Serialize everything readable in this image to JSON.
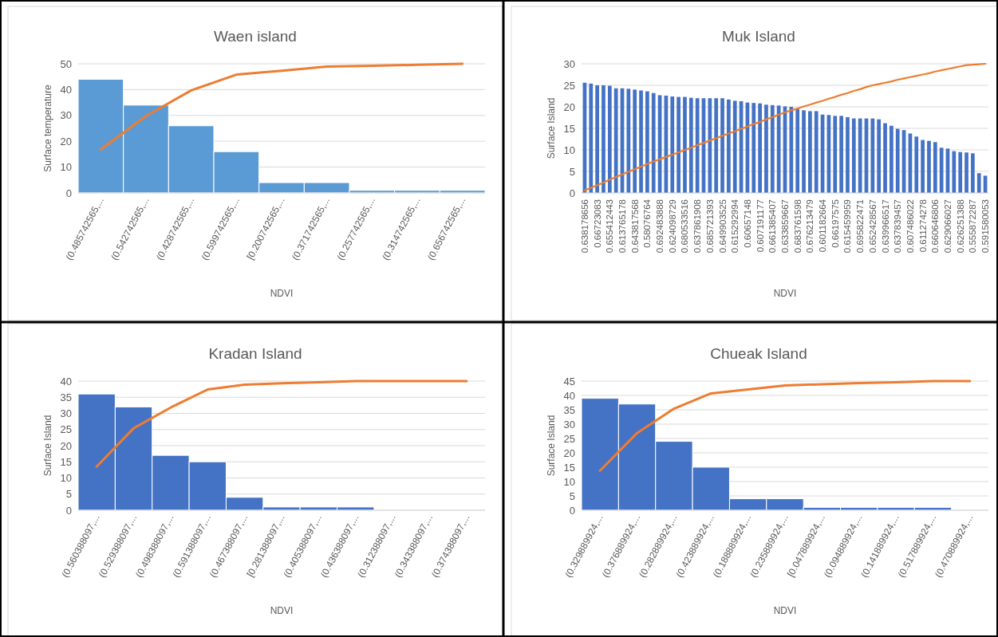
{
  "chart_data": [
    {
      "type": "bar",
      "title": "Waen island",
      "xlabel": "NDVI",
      "ylabel": "Surface temperature",
      "categories": [
        "(0.485742565,...",
        "(0.542742565,...",
        "(0.428742565,...",
        "(0.599742565,...",
        "[0.200742565,...",
        "(0.371742565,...",
        "(0.257742565,...",
        "(0.314742565,...",
        "(0.656742565,..."
      ],
      "series": [
        {
          "color": "#5b9bd5",
          "values": [
            44,
            34,
            26,
            16,
            4,
            4,
            1,
            1,
            1
          ]
        },
        {
          "type": "line",
          "color": "#ed7d31",
          "values": [
            16.8,
            29.8,
            39.7,
            45.8,
            47.3,
            48.9,
            49.2,
            49.6,
            50
          ]
        }
      ],
      "ylim": [
        0,
        50
      ],
      "yticks": [
        0,
        10,
        20,
        30,
        40,
        50
      ],
      "grid": "y",
      "marker": "none",
      "line_style": "solid"
    },
    {
      "type": "bar",
      "title": "Muk Island",
      "xlabel": "NDVI",
      "ylabel": "Surface Island",
      "categories": [
        "0.638178656",
        null,
        "0.66723083",
        null,
        "0.655412443",
        null,
        "0.613765178",
        null,
        "0.643817568",
        null,
        "0.58076764",
        null,
        "0.692483888",
        null,
        "0.624098729",
        null,
        "0.680533516",
        null,
        "0.637861908",
        null,
        "0.685721393",
        null,
        "0.649903525",
        null,
        "0.615292994",
        null,
        "0.60657148",
        null,
        "0.607191177",
        null,
        "0.661385407",
        null,
        "0.633859667",
        null,
        "0.683761598",
        null,
        "0.676213479",
        null,
        "0.601182664",
        null,
        "0.66197575",
        null,
        "0.615459959",
        null,
        "0.695822471",
        null,
        "0.652428567",
        null,
        "0.639966517",
        null,
        "0.637839457",
        null,
        "0.607486022",
        null,
        "0.611274278",
        null,
        "0.660646806",
        null,
        "0.629066027",
        null,
        "0.626251388",
        null,
        "0.555872287",
        null,
        "0.591580053"
      ],
      "series": [
        {
          "color": "#4472c4",
          "values": [
            25.6,
            25.4,
            25.0,
            25.0,
            24.9,
            24.3,
            24.3,
            24.2,
            24.0,
            23.8,
            23.6,
            23.2,
            22.7,
            22.6,
            22.4,
            22.3,
            22.3,
            22.1,
            22.0,
            22.0,
            22.0,
            22.0,
            22.0,
            21.7,
            21.4,
            21.3,
            21.0,
            20.9,
            20.8,
            20.5,
            20.4,
            20.3,
            20.1,
            20.0,
            19.5,
            19.2,
            19.0,
            19.0,
            18.2,
            18.1,
            17.9,
            17.9,
            17.6,
            17.3,
            17.3,
            17.3,
            17.3,
            17.1,
            16.2,
            15.6,
            14.9,
            14.6,
            13.8,
            13.1,
            12.3,
            12.1,
            11.8,
            10.5,
            10.3,
            9.7,
            9.5,
            9.4,
            9.2,
            4.6,
            4.0
          ]
        },
        {
          "type": "line",
          "color": "#ed7d31",
          "values": [
            0.6,
            1.2,
            1.8,
            2.4,
            3.1,
            3.7,
            4.3,
            4.9,
            5.5,
            6.1,
            6.7,
            7.3,
            7.8,
            8.4,
            8.9,
            9.4,
            10.0,
            10.5,
            11.1,
            11.6,
            12.2,
            12.7,
            13.3,
            13.8,
            14.3,
            14.9,
            15.4,
            16.0,
            16.5,
            17.1,
            17.6,
            18.2,
            18.7,
            19.2,
            19.6,
            20.1,
            20.5,
            21.0,
            21.4,
            21.9,
            22.3,
            22.8,
            23.2,
            23.7,
            24.1,
            24.6,
            25.0,
            25.3,
            25.6,
            25.9,
            26.3,
            26.6,
            26.9,
            27.2,
            27.5,
            27.8,
            28.2,
            28.5,
            28.8,
            29.1,
            29.4,
            29.7,
            29.8,
            29.9,
            30.0
          ]
        }
      ],
      "ylim": [
        0,
        30
      ],
      "yticks": [
        0,
        5,
        10,
        15,
        20,
        25,
        30
      ],
      "grid": "y",
      "marker": "none",
      "line_style": "solid"
    },
    {
      "type": "bar",
      "title": "Kradan Island",
      "xlabel": "NDVI",
      "ylabel": "Surface Island",
      "categories": [
        "(0.560388097,...",
        "(0.529388097,...",
        "(0.498388097,...",
        "(0.591388097,...",
        "(0.467388097,...",
        "[0.281388097,...",
        "(0.405388097,...",
        "(0.436388097,...",
        "(0.312388097,...",
        "(0.343388097,...",
        "(0.374388097,..."
      ],
      "series": [
        {
          "color": "#4472c4",
          "values": [
            36,
            32,
            17,
            15,
            4,
            1,
            1,
            1,
            0,
            0,
            0
          ]
        },
        {
          "type": "line",
          "color": "#ed7d31",
          "values": [
            13.5,
            25.4,
            31.8,
            37.4,
            38.9,
            39.3,
            39.6,
            40,
            40,
            40,
            40
          ]
        }
      ],
      "ylim": [
        0,
        40
      ],
      "yticks": [
        0,
        5,
        10,
        15,
        20,
        25,
        30,
        35,
        40
      ],
      "grid": "y",
      "marker": "none",
      "line_style": "solid"
    },
    {
      "type": "bar",
      "title": "Chueak Island",
      "xlabel": "NDVI",
      "ylabel": "Surface Island",
      "categories": [
        "(0.329889924,...",
        "(0.376889924,...",
        "(0.282889924,...",
        "(0.423889924,...",
        "(0.188889924,...",
        "(0.235889924,...",
        "[0.047889924,...",
        "(0.094889924,...",
        "(0.141889924,...",
        "(0.517889924,...",
        "(0.470889924,..."
      ],
      "series": [
        {
          "color": "#4472c4",
          "values": [
            39,
            37,
            24,
            15,
            4,
            4,
            1,
            1,
            1,
            1,
            0
          ]
        },
        {
          "type": "line",
          "color": "#ed7d31",
          "values": [
            13.8,
            26.9,
            35.4,
            40.7,
            42.1,
            43.5,
            43.9,
            44.3,
            44.6,
            45.0,
            45.0
          ]
        }
      ],
      "ylim": [
        0,
        45
      ],
      "yticks": [
        0,
        5,
        10,
        15,
        20,
        25,
        30,
        35,
        40,
        45
      ],
      "grid": "y",
      "marker": "none",
      "line_style": "solid"
    }
  ]
}
